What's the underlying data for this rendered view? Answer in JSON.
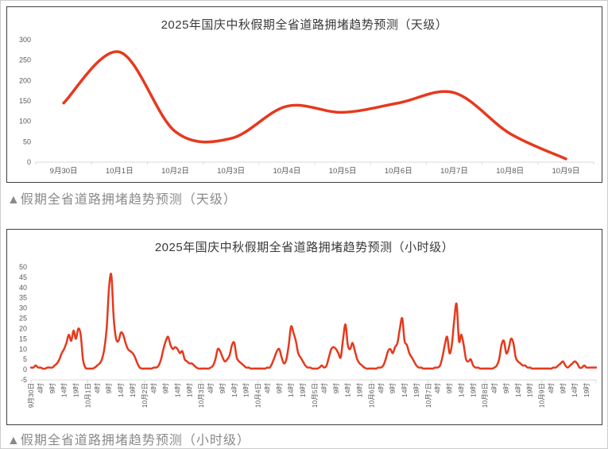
{
  "captions": {
    "daily": "▲假期全省道路拥堵趋势预测（天级）",
    "hourly": "▲假期全省道路拥堵趋势预测（小时级）"
  },
  "colors": {
    "line": "#e6391d",
    "axis_line": "#d9d9d9",
    "tick_label": "#595959",
    "title_text": "#3a3a3a",
    "caption_text": "#8a8a8a",
    "chart_border": "#3f3f3f",
    "page_border": "#cccccc"
  },
  "chart_data": [
    {
      "type": "line",
      "title": "2025年国庆中秋假期全省道路拥堵趋势预测（天级）",
      "xlabel": "",
      "ylabel": "",
      "ylim": [
        0,
        300
      ],
      "yticks": [
        0,
        50,
        100,
        150,
        200,
        250,
        300
      ],
      "grid": false,
      "legend": "none",
      "smooth": true,
      "categories": [
        "9月30日",
        "10月1日",
        "10月2日",
        "10月3日",
        "10月4日",
        "10月5日",
        "10月6日",
        "10月7日",
        "10月8日",
        "10月9日"
      ],
      "values": [
        145,
        270,
        75,
        58,
        137,
        122,
        145,
        170,
        70,
        8
      ]
    },
    {
      "type": "line",
      "title": "2025年国庆中秋假期全省道路拥堵趋势预测（小时级）",
      "xlabel": "",
      "ylabel": "",
      "ylim": [
        -5,
        50
      ],
      "yticks": [
        -5,
        0,
        5,
        10,
        15,
        20,
        25,
        30,
        35,
        40,
        45,
        50
      ],
      "grid": false,
      "legend": "none",
      "smooth": true,
      "days": [
        "9月30日",
        "10月1日",
        "10月2日",
        "10月3日",
        "10月4日",
        "10月5日",
        "10月6日",
        "10月7日",
        "10月8日",
        "10月9日"
      ],
      "hour_tick_labels": [
        "4时",
        "9时",
        "14时",
        "19时"
      ],
      "hour_tick_offsets": [
        4,
        9,
        14,
        19
      ],
      "hours_per_day": 24,
      "values": [
        1,
        1,
        2,
        1,
        1,
        0.5,
        0.5,
        1,
        1,
        1,
        2,
        3,
        5,
        8,
        10,
        13,
        17,
        14,
        19,
        15,
        20,
        17,
        5,
        1,
        0.5,
        0.5,
        0.5,
        1,
        2,
        3,
        5,
        10,
        20,
        40,
        46,
        25,
        15,
        14,
        18,
        17,
        13,
        10,
        9,
        8,
        6,
        3,
        1,
        0.5,
        0.5,
        0.5,
        0.5,
        0.5,
        1,
        1,
        2,
        5,
        10,
        14,
        16,
        12,
        10,
        11,
        10,
        8,
        9,
        5,
        4,
        3,
        3,
        2,
        1,
        0.5,
        0.5,
        0.5,
        0.5,
        0.5,
        1,
        2,
        5,
        10,
        9,
        6,
        4,
        5,
        7,
        12,
        13,
        6,
        4,
        3,
        2,
        1,
        1,
        0.5,
        0.5,
        0.5,
        0.5,
        0.5,
        0.5,
        0.5,
        1,
        1,
        3,
        6,
        9,
        10,
        6,
        3,
        5,
        12,
        21,
        18,
        14,
        8,
        6,
        4,
        2,
        1,
        1,
        0.5,
        0.5,
        0.5,
        1,
        2,
        1,
        2,
        6,
        10,
        11,
        10,
        8,
        6,
        15,
        22,
        12,
        10,
        13,
        9,
        5,
        3,
        2,
        1,
        0.5,
        0.5,
        0.5,
        0.5,
        0.5,
        1,
        1,
        2,
        5,
        9,
        10,
        8,
        11,
        13,
        20,
        25,
        14,
        12,
        8,
        6,
        4,
        2,
        1,
        1,
        0.5,
        0.5,
        0.5,
        0.5,
        0.5,
        1,
        1,
        2,
        6,
        12,
        16,
        8,
        12,
        24,
        32,
        14,
        17,
        12,
        5,
        4,
        5,
        2,
        1,
        1,
        0.5,
        0.5,
        0.5,
        0.5,
        0.5,
        0.5,
        1,
        2,
        5,
        12,
        14,
        8,
        10,
        15,
        13,
        6,
        4,
        3,
        2,
        2,
        1,
        1,
        0.5,
        0.5,
        0.5,
        0.5,
        0.5,
        0.5,
        0.5,
        0.5,
        0.5,
        1,
        1,
        2,
        3,
        4,
        2,
        1,
        2,
        3,
        4,
        3,
        1,
        1,
        2,
        1,
        1,
        1,
        1,
        1
      ]
    }
  ]
}
